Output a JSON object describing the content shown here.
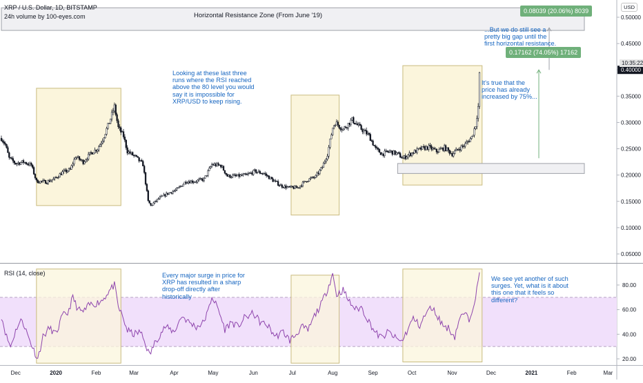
{
  "header": {
    "symbol_line": "XRP / U.S. Dollar, 1D, BITSTAMP",
    "volume_line": "24h volume by 100-eyes.com",
    "currency_badge": "USD",
    "clock": "10:35:22"
  },
  "zone_label": "Horizontal Resistance Zone (From June '19)",
  "measure_labels": {
    "upper": "0.08039 (20.06%) 8039",
    "lower": "0.17162 (74.05%) 17162"
  },
  "annotations": {
    "rsi_runs": "Looking at these last three\nruns where the RSI reached\nabove the 80 level you would\nsay it is impossible for\nXRP/USD to keep rising.",
    "price_increase": "It's true that the\nprice has already\nincreased by 75%...",
    "gap": "...But we do still see a\npretty big gap until the\nfirst horizontal resistance.",
    "surge_history": "Every major surge in price for\nXRP has resulted in a sharp\ndrop-off directly after\nhistorically",
    "surge_now": "We see yet another of such\nsurges. Yet, what is it about\nthis one that it feels so\ndifferent?"
  },
  "rsi_title": "RSI (14, close)",
  "colors": {
    "candle": "#131722",
    "highlight_fill": "#fbf5dc",
    "highlight_stroke": "#c9bb7e",
    "rsi_line": "#8e44ad",
    "rsi_band": "#f1e0fb",
    "annotation_text": "#1565c0",
    "measure_green": "#6fb07a",
    "measure_line": "#71b07b"
  },
  "chart_data": [
    {
      "type": "candlestick",
      "title": "XRP / U.S. Dollar, 1D, BITSTAMP",
      "x_ticks": [
        "Dec",
        "2020",
        "Feb",
        "Mar",
        "Apr",
        "May",
        "Jun",
        "Jul",
        "Aug",
        "Sep",
        "Oct",
        "Nov",
        "Dec",
        "2021",
        "Feb",
        "Mar"
      ],
      "y_ticks": [
        "0.05000",
        "0.10000",
        "0.15000",
        "0.20000",
        "0.25000",
        "0.30000",
        "0.35000",
        "0.40000",
        "0.45000",
        "0.50000"
      ],
      "ylim": [
        0.045,
        0.52
      ],
      "last_price": 0.4,
      "close_series": [
        {
          "date": "2019-11-20",
          "close": 0.27
        },
        {
          "date": "2019-11-23",
          "close": 0.258
        },
        {
          "date": "2019-11-26",
          "close": 0.232
        },
        {
          "date": "2019-12-01",
          "close": 0.222
        },
        {
          "date": "2019-12-07",
          "close": 0.225
        },
        {
          "date": "2019-12-13",
          "close": 0.219
        },
        {
          "date": "2019-12-17",
          "close": 0.188
        },
        {
          "date": "2019-12-19",
          "close": 0.188
        },
        {
          "date": "2019-12-25",
          "close": 0.187
        },
        {
          "date": "2019-12-31",
          "close": 0.193
        },
        {
          "date": "2020-01-06",
          "close": 0.205
        },
        {
          "date": "2020-01-12",
          "close": 0.21
        },
        {
          "date": "2020-01-16",
          "close": 0.235
        },
        {
          "date": "2020-01-22",
          "close": 0.225
        },
        {
          "date": "2020-01-28",
          "close": 0.242
        },
        {
          "date": "2020-02-02",
          "close": 0.25
        },
        {
          "date": "2020-02-06",
          "close": 0.268
        },
        {
          "date": "2020-02-11",
          "close": 0.3
        },
        {
          "date": "2020-02-15",
          "close": 0.33
        },
        {
          "date": "2020-02-18",
          "close": 0.29
        },
        {
          "date": "2020-02-22",
          "close": 0.274
        },
        {
          "date": "2020-02-25",
          "close": 0.245
        },
        {
          "date": "2020-03-02",
          "close": 0.235
        },
        {
          "date": "2020-03-08",
          "close": 0.22
        },
        {
          "date": "2020-03-12",
          "close": 0.15
        },
        {
          "date": "2020-03-14",
          "close": 0.142
        },
        {
          "date": "2020-03-20",
          "close": 0.155
        },
        {
          "date": "2020-03-27",
          "close": 0.165
        },
        {
          "date": "2020-04-03",
          "close": 0.172
        },
        {
          "date": "2020-04-10",
          "close": 0.188
        },
        {
          "date": "2020-04-17",
          "close": 0.188
        },
        {
          "date": "2020-04-24",
          "close": 0.192
        },
        {
          "date": "2020-04-30",
          "close": 0.22
        },
        {
          "date": "2020-05-07",
          "close": 0.218
        },
        {
          "date": "2020-05-12",
          "close": 0.198
        },
        {
          "date": "2020-05-20",
          "close": 0.198
        },
        {
          "date": "2020-05-27",
          "close": 0.2
        },
        {
          "date": "2020-06-02",
          "close": 0.207
        },
        {
          "date": "2020-06-09",
          "close": 0.203
        },
        {
          "date": "2020-06-16",
          "close": 0.19
        },
        {
          "date": "2020-06-22",
          "close": 0.18
        },
        {
          "date": "2020-06-28",
          "close": 0.176
        },
        {
          "date": "2020-07-05",
          "close": 0.176
        },
        {
          "date": "2020-07-12",
          "close": 0.19
        },
        {
          "date": "2020-07-19",
          "close": 0.197
        },
        {
          "date": "2020-07-24",
          "close": 0.215
        },
        {
          "date": "2020-07-28",
          "close": 0.24
        },
        {
          "date": "2020-08-01",
          "close": 0.29
        },
        {
          "date": "2020-08-03",
          "close": 0.3
        },
        {
          "date": "2020-08-09",
          "close": 0.287
        },
        {
          "date": "2020-08-16",
          "close": 0.305
        },
        {
          "date": "2020-08-22",
          "close": 0.29
        },
        {
          "date": "2020-08-29",
          "close": 0.275
        },
        {
          "date": "2020-09-03",
          "close": 0.25
        },
        {
          "date": "2020-09-08",
          "close": 0.24
        },
        {
          "date": "2020-09-14",
          "close": 0.245
        },
        {
          "date": "2020-09-20",
          "close": 0.24
        },
        {
          "date": "2020-09-24",
          "close": 0.232
        },
        {
          "date": "2020-10-01",
          "close": 0.242
        },
        {
          "date": "2020-10-08",
          "close": 0.25
        },
        {
          "date": "2020-10-14",
          "close": 0.253
        },
        {
          "date": "2020-10-20",
          "close": 0.245
        },
        {
          "date": "2020-10-26",
          "close": 0.252
        },
        {
          "date": "2020-11-01",
          "close": 0.24
        },
        {
          "date": "2020-11-06",
          "close": 0.25
        },
        {
          "date": "2020-11-11",
          "close": 0.258
        },
        {
          "date": "2020-11-16",
          "close": 0.272
        },
        {
          "date": "2020-11-19",
          "close": 0.295
        },
        {
          "date": "2020-11-21",
          "close": 0.33
        },
        {
          "date": "2020-11-22",
          "close": 0.39
        }
      ]
    },
    {
      "type": "line",
      "title": "RSI (14, close)",
      "y_ticks": [
        "20.00",
        "40.00",
        "60.00",
        "80.00"
      ],
      "ylim": [
        16,
        95
      ],
      "band": [
        30,
        70
      ],
      "series": [
        {
          "date": "2019-11-20",
          "value": 55
        },
        {
          "date": "2019-11-24",
          "value": 38
        },
        {
          "date": "2019-11-27",
          "value": 30
        },
        {
          "date": "2019-12-02",
          "value": 46
        },
        {
          "date": "2019-12-06",
          "value": 52
        },
        {
          "date": "2019-12-10",
          "value": 40
        },
        {
          "date": "2019-12-15",
          "value": 27
        },
        {
          "date": "2019-12-18",
          "value": 20
        },
        {
          "date": "2019-12-22",
          "value": 38
        },
        {
          "date": "2019-12-27",
          "value": 45
        },
        {
          "date": "2020-01-01",
          "value": 40
        },
        {
          "date": "2020-01-06",
          "value": 55
        },
        {
          "date": "2020-01-10",
          "value": 57
        },
        {
          "date": "2020-01-14",
          "value": 70
        },
        {
          "date": "2020-01-18",
          "value": 60
        },
        {
          "date": "2020-01-22",
          "value": 58
        },
        {
          "date": "2020-01-27",
          "value": 64
        },
        {
          "date": "2020-02-01",
          "value": 65
        },
        {
          "date": "2020-02-06",
          "value": 68
        },
        {
          "date": "2020-02-10",
          "value": 74
        },
        {
          "date": "2020-02-15",
          "value": 80
        },
        {
          "date": "2020-02-18",
          "value": 62
        },
        {
          "date": "2020-02-21",
          "value": 55
        },
        {
          "date": "2020-02-25",
          "value": 43
        },
        {
          "date": "2020-03-01",
          "value": 40
        },
        {
          "date": "2020-03-06",
          "value": 42
        },
        {
          "date": "2020-03-10",
          "value": 32
        },
        {
          "date": "2020-03-13",
          "value": 23
        },
        {
          "date": "2020-03-18",
          "value": 35
        },
        {
          "date": "2020-03-25",
          "value": 46
        },
        {
          "date": "2020-04-01",
          "value": 42
        },
        {
          "date": "2020-04-07",
          "value": 55
        },
        {
          "date": "2020-04-12",
          "value": 50
        },
        {
          "date": "2020-04-18",
          "value": 46
        },
        {
          "date": "2020-04-23",
          "value": 49
        },
        {
          "date": "2020-04-27",
          "value": 58
        },
        {
          "date": "2020-04-30",
          "value": 71
        },
        {
          "date": "2020-05-05",
          "value": 60
        },
        {
          "date": "2020-05-10",
          "value": 44
        },
        {
          "date": "2020-05-15",
          "value": 50
        },
        {
          "date": "2020-05-20",
          "value": 46
        },
        {
          "date": "2020-05-25",
          "value": 53
        },
        {
          "date": "2020-06-01",
          "value": 57
        },
        {
          "date": "2020-06-06",
          "value": 50
        },
        {
          "date": "2020-06-12",
          "value": 47
        },
        {
          "date": "2020-06-18",
          "value": 38
        },
        {
          "date": "2020-06-24",
          "value": 42
        },
        {
          "date": "2020-06-29",
          "value": 35
        },
        {
          "date": "2020-07-04",
          "value": 40
        },
        {
          "date": "2020-07-08",
          "value": 46
        },
        {
          "date": "2020-07-13",
          "value": 43
        },
        {
          "date": "2020-07-18",
          "value": 55
        },
        {
          "date": "2020-07-23",
          "value": 64
        },
        {
          "date": "2020-07-27",
          "value": 74
        },
        {
          "date": "2020-08-01",
          "value": 89
        },
        {
          "date": "2020-08-04",
          "value": 72
        },
        {
          "date": "2020-08-09",
          "value": 76
        },
        {
          "date": "2020-08-14",
          "value": 66
        },
        {
          "date": "2020-08-19",
          "value": 60
        },
        {
          "date": "2020-08-23",
          "value": 62
        },
        {
          "date": "2020-08-28",
          "value": 52
        },
        {
          "date": "2020-09-03",
          "value": 41
        },
        {
          "date": "2020-09-08",
          "value": 37
        },
        {
          "date": "2020-09-13",
          "value": 42
        },
        {
          "date": "2020-09-18",
          "value": 37
        },
        {
          "date": "2020-09-23",
          "value": 34
        },
        {
          "date": "2020-09-27",
          "value": 42
        },
        {
          "date": "2020-10-02",
          "value": 53
        },
        {
          "date": "2020-10-07",
          "value": 47
        },
        {
          "date": "2020-10-12",
          "value": 57
        },
        {
          "date": "2020-10-16",
          "value": 62
        },
        {
          "date": "2020-10-20",
          "value": 56
        },
        {
          "date": "2020-10-25",
          "value": 47
        },
        {
          "date": "2020-10-29",
          "value": 45
        },
        {
          "date": "2020-11-03",
          "value": 38
        },
        {
          "date": "2020-11-06",
          "value": 51
        },
        {
          "date": "2020-11-10",
          "value": 57
        },
        {
          "date": "2020-11-14",
          "value": 52
        },
        {
          "date": "2020-11-17",
          "value": 63
        },
        {
          "date": "2020-11-20",
          "value": 76
        },
        {
          "date": "2020-11-22",
          "value": 89
        }
      ]
    }
  ]
}
